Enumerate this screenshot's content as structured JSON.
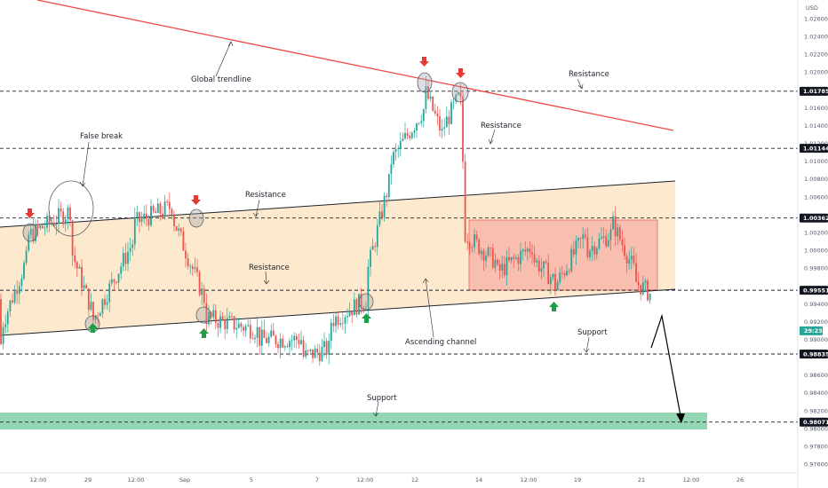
{
  "chart_data": {
    "type": "candlestick",
    "currency": "USD",
    "title": "",
    "y_axis": {
      "ticks": [
        "1.02600",
        "1.02400",
        "1.02200",
        "1.02000",
        "1.01600",
        "1.01400",
        "1.01200",
        "1.01000",
        "1.00800",
        "1.00600",
        "1.00200",
        "1.00000",
        "0.99800",
        "0.99400",
        "0.99200",
        "0.99000",
        "0.98600",
        "0.98400",
        "0.98200",
        "0.98000",
        "0.97800",
        "0.97600"
      ],
      "tick_values": [
        1.026,
        1.024,
        1.022,
        1.02,
        1.016,
        1.014,
        1.012,
        1.01,
        1.008,
        1.006,
        1.002,
        1.0,
        0.998,
        0.994,
        0.992,
        0.99,
        0.986,
        0.984,
        0.982,
        0.98,
        0.978,
        0.976
      ],
      "range": [
        0.9745,
        1.028
      ]
    },
    "x_axis": {
      "ticks": [
        "12:00",
        "29",
        "12:00",
        "Sep",
        "5",
        "7",
        "12:00",
        "12",
        "14",
        "12:00",
        "19",
        "21",
        "12:00",
        "26"
      ]
    },
    "levels": [
      {
        "price": 1.01785,
        "label": "1.01785",
        "style": "dashed"
      },
      {
        "price": 1.01144,
        "label": "1.01144",
        "style": "dashed"
      },
      {
        "price": 1.00362,
        "label": "1.00362",
        "style": "dashed"
      },
      {
        "price": 0.99551,
        "label": "0.99551",
        "style": "dashed"
      },
      {
        "price": 0.98835,
        "label": "0.98835",
        "style": "dashed"
      },
      {
        "price": 0.98071,
        "label": "0.98071",
        "style": "dashed"
      }
    ],
    "current_price": {
      "label": "29:23",
      "price": 0.99095
    },
    "candles_approx": [
      {
        "x": 2,
        "o": 0.9945,
        "c": 0.9915
      },
      {
        "x": 30,
        "o": 0.999,
        "c": 1.0015
      },
      {
        "x": 80,
        "o": 1.0045,
        "c": 1.0
      },
      {
        "x": 104,
        "o": 0.993,
        "c": 0.992
      },
      {
        "x": 150,
        "o": 1.001,
        "c": 1.003
      },
      {
        "x": 195,
        "o": 1.005,
        "c": 1.0035
      },
      {
        "x": 230,
        "o": 0.9945,
        "c": 0.9925
      },
      {
        "x": 290,
        "o": 0.991,
        "c": 0.99
      },
      {
        "x": 340,
        "o": 0.99,
        "c": 0.988
      },
      {
        "x": 372,
        "o": 0.989,
        "c": 0.992
      },
      {
        "x": 412,
        "o": 0.9945,
        "c": 0.997
      },
      {
        "x": 440,
        "o": 1.0085,
        "c": 1.01
      },
      {
        "x": 478,
        "o": 1.016,
        "c": 1.018
      },
      {
        "x": 500,
        "o": 1.0125,
        "c": 1.014
      },
      {
        "x": 518,
        "o": 1.0175,
        "c": 1.0175
      },
      {
        "x": 522,
        "o": 1.0075,
        "c": 1.002
      },
      {
        "x": 560,
        "o": 0.9985,
        "c": 0.9975
      },
      {
        "x": 600,
        "o": 1.0005,
        "c": 0.999
      },
      {
        "x": 625,
        "o": 0.9965,
        "c": 0.996
      },
      {
        "x": 660,
        "o": 1.002,
        "c": 1.0
      },
      {
        "x": 690,
        "o": 1.002,
        "c": 1.003
      },
      {
        "x": 715,
        "o": 0.9975,
        "c": 0.9965
      },
      {
        "x": 733,
        "o": 0.995,
        "c": 0.9895
      }
    ]
  },
  "annotations": {
    "global_trendline": "Global trendline",
    "false_break": "False break",
    "resistance_top": "Resistance",
    "resistance_upper": "Resistance",
    "resistance_channel": "Resistance",
    "resistance_left": "Resistance",
    "ascending_channel": "Ascending channel",
    "support_right": "Support",
    "support_bottom": "Support"
  },
  "colors": {
    "bull": "#26a69a",
    "bear": "#ef5350",
    "trendline": "#ef4a4a",
    "channel_fill": "#fde7c8",
    "box_fill": "#f6b3a8",
    "zone_fill": "#7fcfa6",
    "arrow_up": "#1e9e47",
    "arrow_down": "#e53935"
  }
}
